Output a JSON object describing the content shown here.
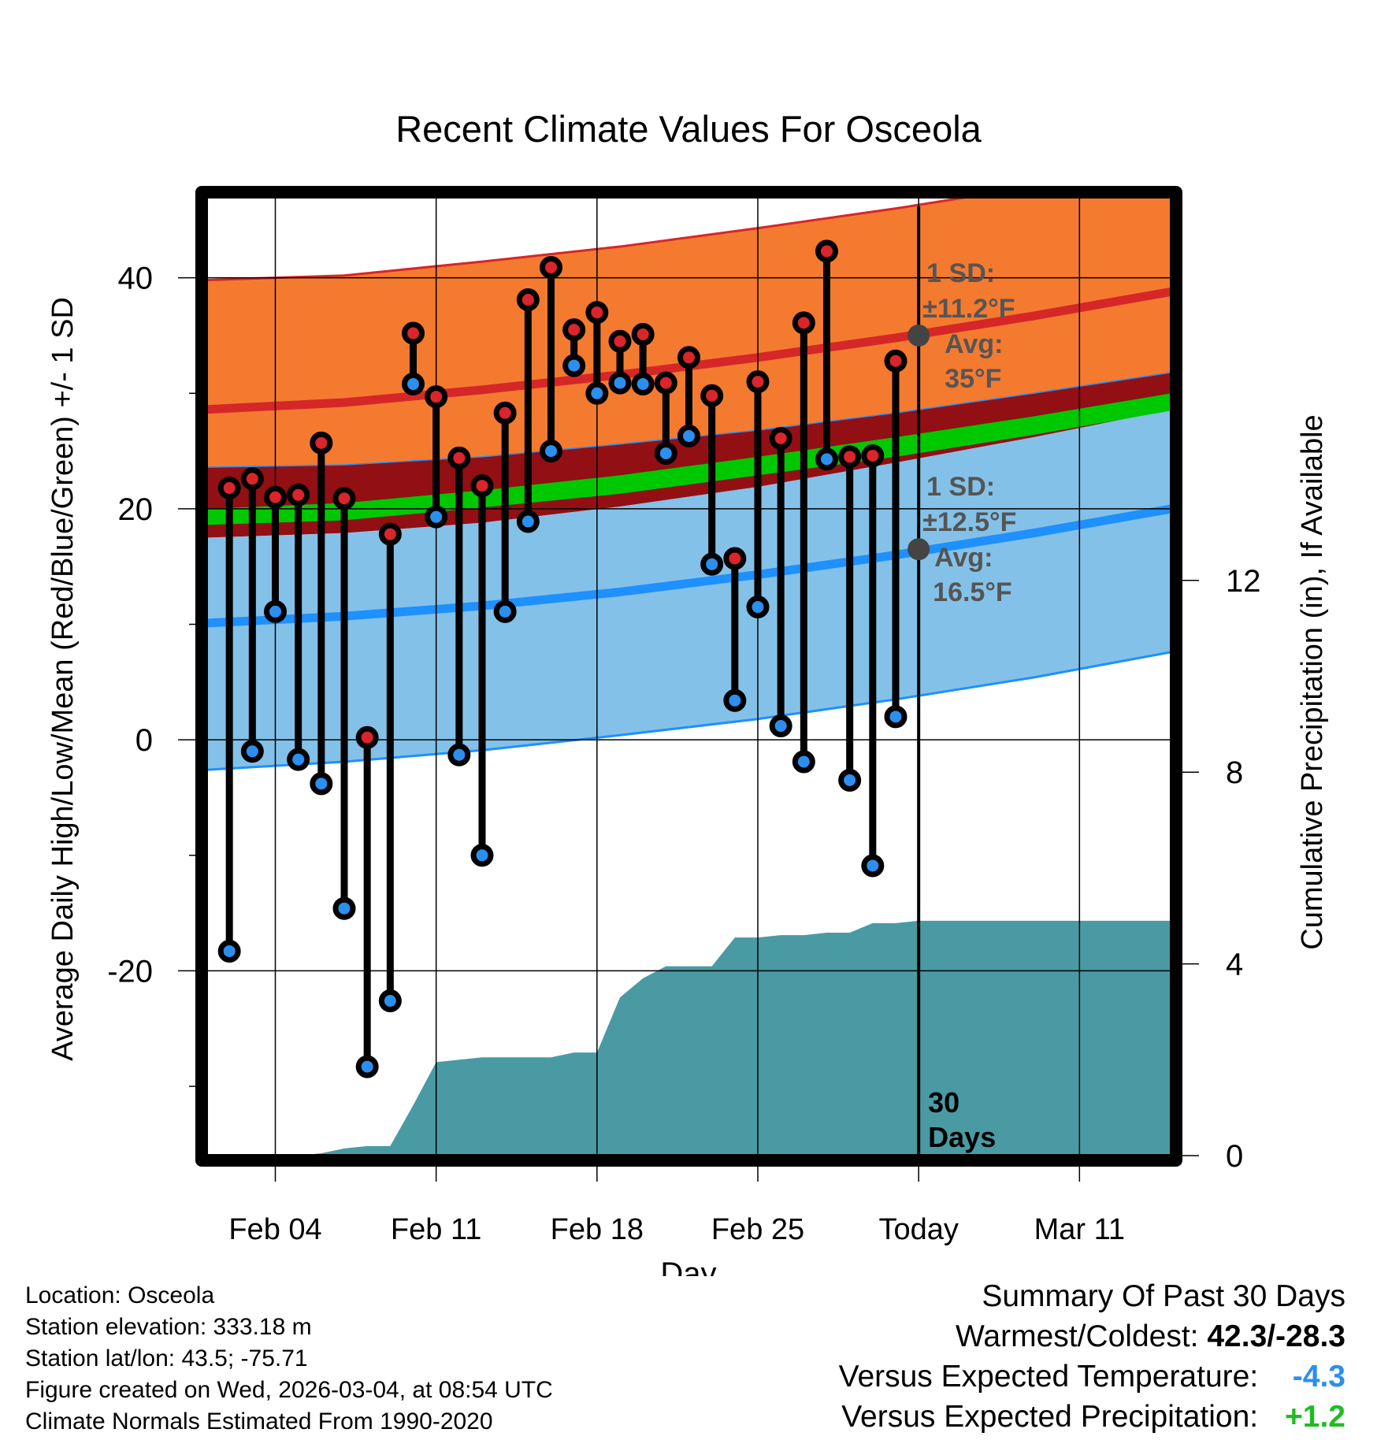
{
  "chart_data": {
    "type": "line",
    "title": "Recent Climate Values For Osceola",
    "xlabel": "Day",
    "ylabel": "Average Daily High/Low/Mean (Red/Blue/Green) +/- 1 SD",
    "y2label": "Cumulative Precipitation (in), If Available",
    "xlim": [
      0,
      42
    ],
    "ylim": [
      -36,
      47
    ],
    "y2lim": [
      0,
      20
    ],
    "x_ticks": [
      {
        "x": 3,
        "label": "Feb 04"
      },
      {
        "x": 10,
        "label": "Feb 11"
      },
      {
        "x": 17,
        "label": "Feb 18"
      },
      {
        "x": 24,
        "label": "Feb 25"
      },
      {
        "x": 31,
        "label": "Today"
      },
      {
        "x": 38,
        "label": "Mar 11"
      }
    ],
    "y_ticks": [
      -20,
      0,
      20,
      40
    ],
    "y_minor_ticks": [
      -30,
      -10,
      10,
      30
    ],
    "y2_ticks": [
      0,
      4,
      8,
      12
    ],
    "today_x": 31,
    "today_label": "30 Days",
    "normals": {
      "x": [
        0,
        6,
        12,
        18,
        24,
        30,
        36,
        42
      ],
      "high_avg": [
        28.6,
        29.2,
        30.3,
        31.6,
        33.1,
        34.8,
        36.7,
        38.8
      ],
      "high_sd_upper": [
        39.8,
        40.2,
        41.4,
        42.7,
        44.3,
        46.0,
        47.9,
        50.0
      ],
      "high_sd_lower": [
        23.6,
        23.8,
        24.5,
        25.6,
        26.8,
        28.3,
        30.0,
        31.8
      ],
      "low_avg": [
        10.1,
        10.7,
        11.6,
        12.8,
        14.3,
        16.0,
        17.9,
        20.0
      ],
      "low_sd_upper": [
        17.5,
        17.9,
        18.8,
        20.2,
        21.9,
        24.0,
        26.2,
        28.6
      ],
      "low_sd_lower": [
        -2.6,
        -1.9,
        -0.9,
        0.4,
        1.8,
        3.5,
        5.4,
        7.6
      ],
      "mean_upper": [
        20.0,
        20.5,
        21.6,
        22.9,
        24.5,
        26.2,
        28.0,
        30.0
      ],
      "mean_lower": [
        18.6,
        19.0,
        20.1,
        21.3,
        22.9,
        24.5,
        26.4,
        28.5
      ]
    },
    "series": [
      {
        "name": "Daily High",
        "color": "#d9252b",
        "x": [
          1,
          2,
          3,
          4,
          5,
          6,
          7,
          8,
          9,
          10,
          11,
          12,
          13,
          14,
          15,
          16,
          17,
          18,
          19,
          20,
          21,
          22,
          23,
          24,
          25,
          26,
          27,
          28,
          29,
          30
        ],
        "values": [
          21.8,
          22.6,
          21.0,
          21.2,
          25.7,
          20.9,
          0.2,
          17.8,
          35.2,
          29.7,
          24.4,
          22.0,
          28.3,
          38.1,
          40.9,
          35.5,
          37.0,
          34.5,
          35.1,
          30.9,
          33.1,
          29.8,
          15.7,
          31.0,
          26.1,
          36.1,
          42.3,
          24.5,
          24.6,
          32.8
        ]
      },
      {
        "name": "Daily Low",
        "color": "#2b8fef",
        "x": [
          1,
          2,
          3,
          4,
          5,
          6,
          7,
          8,
          9,
          10,
          11,
          12,
          13,
          14,
          15,
          16,
          17,
          18,
          19,
          20,
          21,
          22,
          23,
          24,
          25,
          26,
          27,
          28,
          29,
          30
        ],
        "values": [
          -18.3,
          -1.0,
          11.1,
          -1.7,
          -3.8,
          -14.6,
          -28.3,
          -22.6,
          30.8,
          19.3,
          -1.3,
          -10.0,
          11.1,
          18.9,
          25.0,
          32.4,
          30.0,
          30.9,
          30.8,
          24.8,
          26.3,
          15.2,
          3.4,
          11.5,
          1.2,
          -1.9,
          24.3,
          -3.5,
          -10.9,
          2.0
        ]
      }
    ],
    "precipitation": {
      "x": [
        1.5,
        2,
        3,
        4,
        5,
        6,
        7,
        8,
        9,
        10,
        11,
        12,
        13,
        14,
        15,
        16,
        17,
        18,
        19,
        20,
        21,
        22,
        23,
        24,
        25,
        26,
        27,
        28,
        29,
        30,
        31,
        42
      ],
      "values": [
        0,
        0,
        0,
        0,
        0.05,
        0.15,
        0.2,
        0.2,
        1.05,
        1.95,
        2.0,
        2.05,
        2.05,
        2.05,
        2.05,
        2.15,
        2.15,
        3.3,
        3.7,
        3.95,
        3.95,
        3.95,
        4.55,
        4.55,
        4.6,
        4.6,
        4.65,
        4.65,
        4.85,
        4.85,
        4.9,
        4.9
      ]
    },
    "annotations": {
      "high": {
        "sd_line1": "1 SD:",
        "sd_line2": "±11.2°F",
        "avg_line1": "Avg:",
        "avg_line2": "35°F",
        "avg_value": 35
      },
      "low": {
        "sd_line1": "1 SD:",
        "sd_line2": "±12.5°F",
        "avg_line1": "Avg:",
        "avg_line2": "16.5°F",
        "avg_value": 16.5
      }
    },
    "colors": {
      "high_band": "#f47a30",
      "high_band_edge": "#d62728",
      "high_avg_line": "#d62728",
      "low_band": "#84c1e8",
      "low_band_edge": "#1e90ff",
      "low_avg_line": "#1e90ff",
      "mean_band": "#00c800",
      "overlap_band": "#920f14",
      "precip_fill": "#4a9aa4",
      "annotation_text": "#555555"
    }
  },
  "footer": {
    "location": "Location: Osceola",
    "elevation": "Station elevation: 333.18 m",
    "latlon": "Station lat/lon: 43.5; -75.71",
    "created": "Figure created on Wed, 2026-03-04, at 08:54 UTC",
    "normals": "Climate Normals Estimated From 1990-2020"
  },
  "summary": {
    "title": "Summary Of Past 30 Days",
    "warmest_label": "Warmest/Coldest:",
    "warmest_value": "42.3/-28.3",
    "temp_label": "Versus Expected Temperature:",
    "temp_value": "-4.3",
    "temp_color": "#2b8fef",
    "precip_label": "Versus Expected Precipitation:",
    "precip_value": "+1.2",
    "precip_color": "#22bb22"
  }
}
